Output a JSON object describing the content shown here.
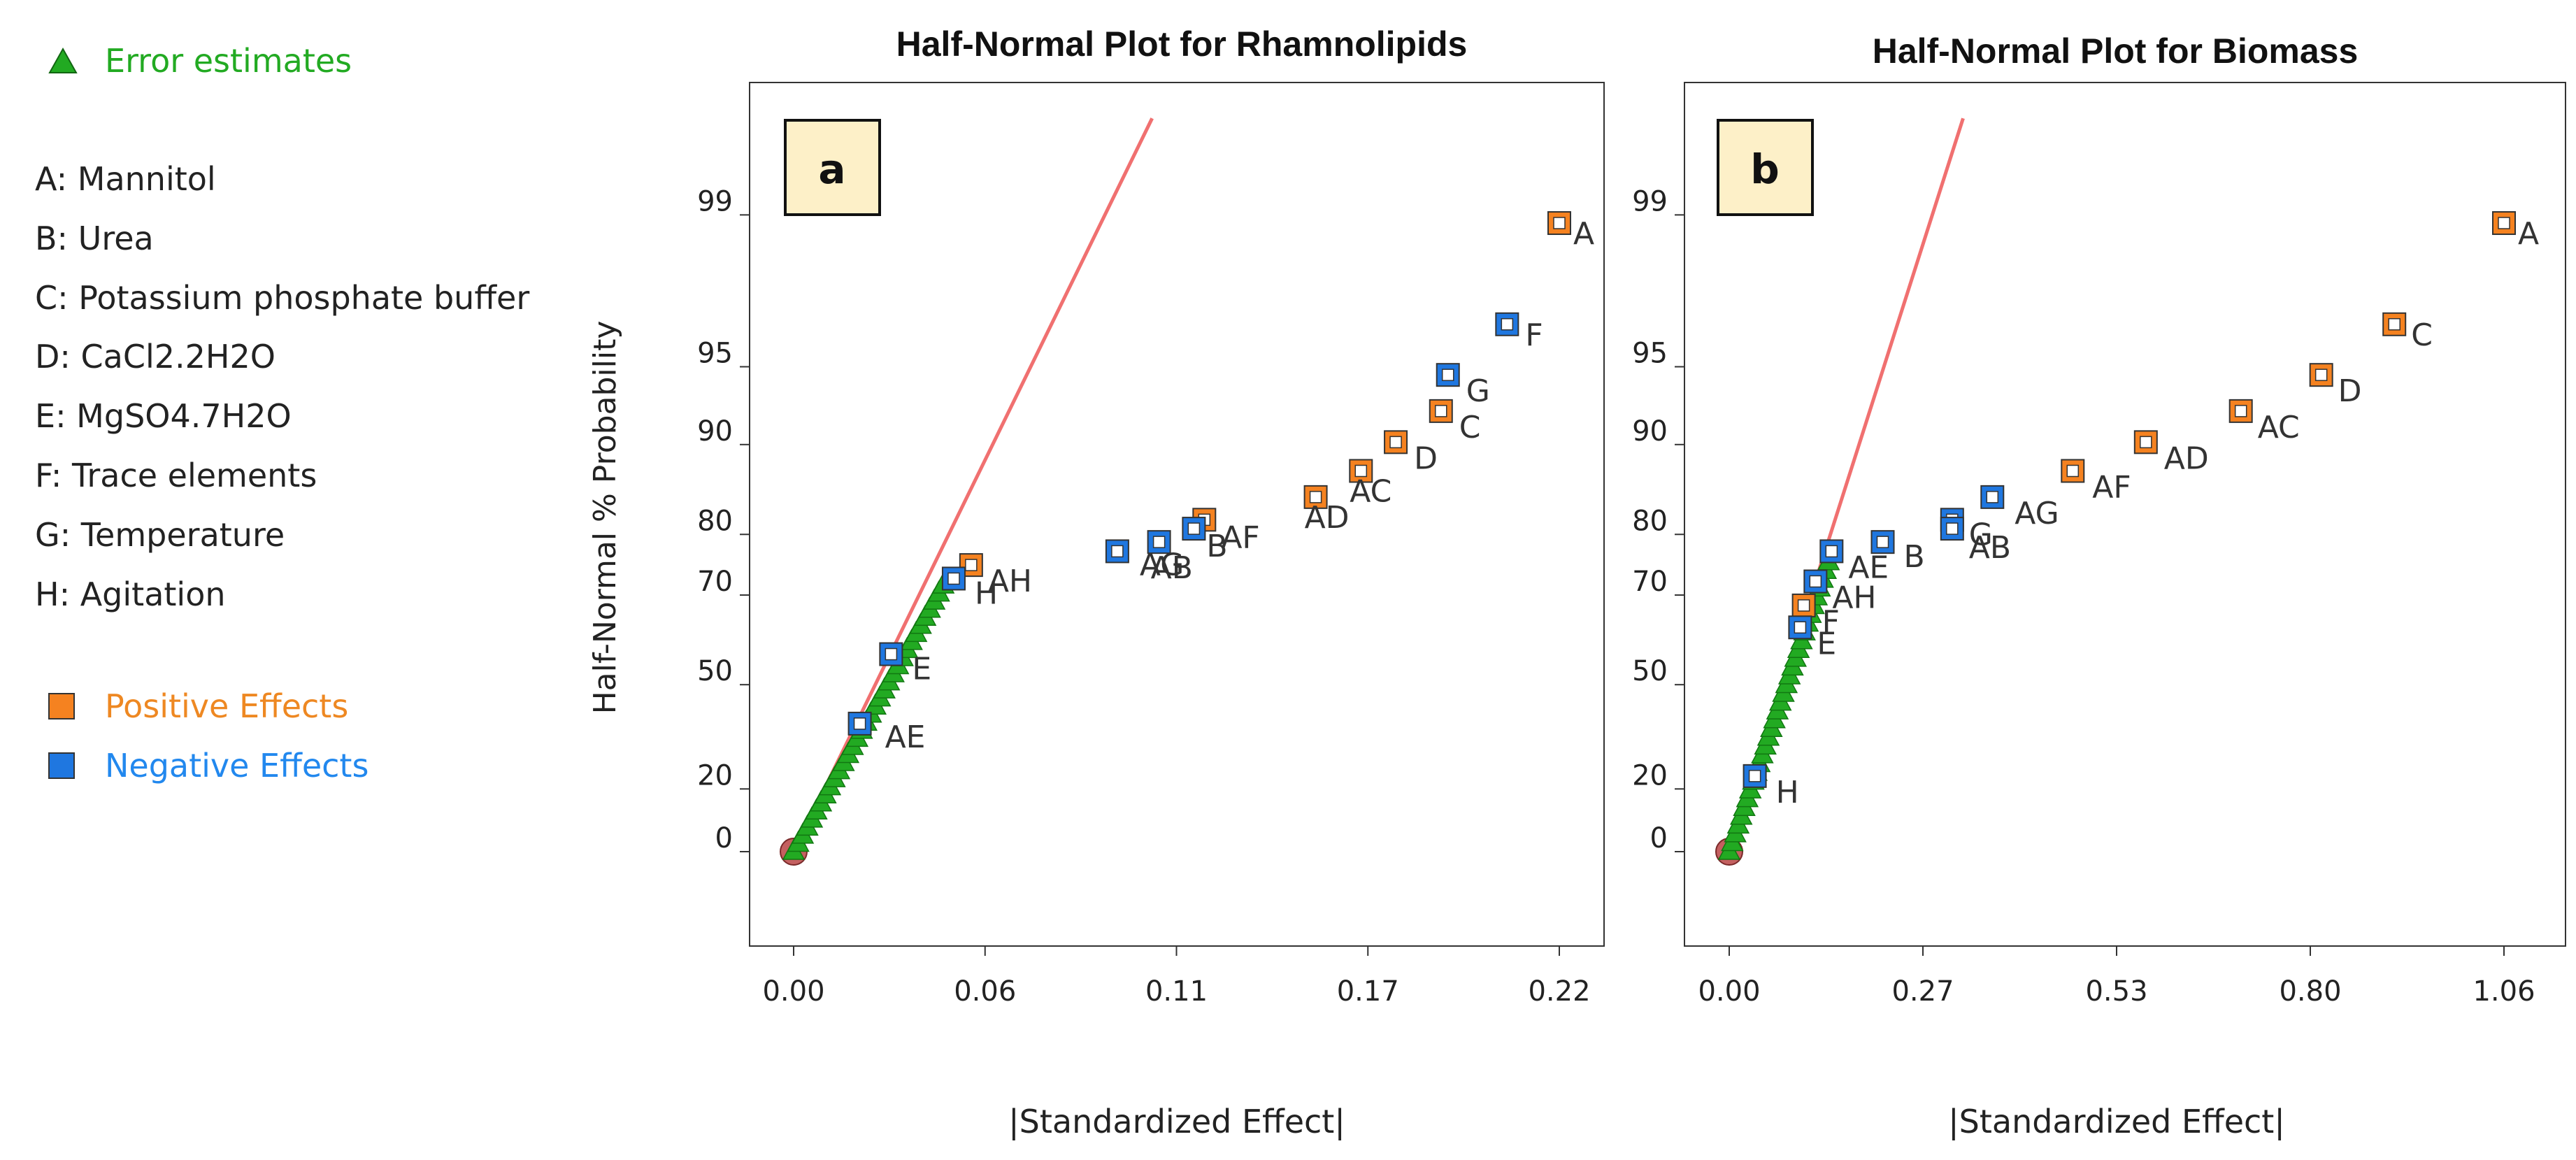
{
  "legend": {
    "error_label": "Error estimates",
    "factors": [
      "A: Mannitol",
      "B: Urea",
      "C: Potassium phosphate buffer",
      "D: CaCl2.2H2O",
      "E: MgSO4.7H2O",
      "F: Trace elements",
      "G: Temperature",
      "H: Agitation"
    ],
    "positive_label": "Positive Effects",
    "negative_label": "Negative Effects"
  },
  "colors": {
    "positive_fill": "#f58220",
    "negative_fill": "#1f77e0",
    "error_fill": "#22aa22",
    "error_text": "#22aa22",
    "positive_text": "#ee8822",
    "negative_text": "#2288ee",
    "fit_line": "#f07070",
    "origin_marker": "#c46060",
    "panel_label_bg": "#fdf0c8"
  },
  "chart_data": [
    {
      "type": "scatter",
      "title": "Half-Normal Plot for Rhamnolipids",
      "panel_label": "a",
      "xlabel": "|Standardized Effect|",
      "ylabel": "Half-Normal % Probability",
      "x_ticks": [
        "0.00",
        "0.06",
        "0.11",
        "0.17",
        "0.22"
      ],
      "x_tick_values": [
        0.0,
        0.055,
        0.11,
        0.165,
        0.22
      ],
      "xlim": [
        -0.013,
        0.232
      ],
      "y_ticks": [
        "0",
        "20",
        "50",
        "70",
        "80",
        "90",
        "95",
        "99"
      ],
      "fit_line": [
        [
          0.0,
          0
        ],
        [
          0.103,
          99.7
        ]
      ],
      "effects": [
        {
          "label": "A",
          "x": 0.22,
          "y": 98.9,
          "sign": "positive"
        },
        {
          "label": "F",
          "x": 0.205,
          "y": 96.7,
          "sign": "negative"
        },
        {
          "label": "G",
          "x": 0.188,
          "y": 94.6,
          "sign": "negative"
        },
        {
          "label": "C",
          "x": 0.186,
          "y": 92.5,
          "sign": "positive"
        },
        {
          "label": "D",
          "x": 0.173,
          "y": 90.2,
          "sign": "positive"
        },
        {
          "label": "AC",
          "x": 0.163,
          "y": 87.6,
          "sign": "positive"
        },
        {
          "label": "AD",
          "x": 0.15,
          "y": 84.8,
          "sign": "positive"
        },
        {
          "label": "AF",
          "x": 0.118,
          "y": 82.0,
          "sign": "positive"
        },
        {
          "label": "B",
          "x": 0.115,
          "y": 80.8,
          "sign": "negative"
        },
        {
          "label": "AB",
          "x": 0.105,
          "y": 78.9,
          "sign": "negative"
        },
        {
          "label": "AG",
          "x": 0.093,
          "y": 77.5,
          "sign": "negative"
        },
        {
          "label": "AH",
          "x": 0.051,
          "y": 75.3,
          "sign": "positive"
        },
        {
          "label": "H",
          "x": 0.046,
          "y": 73.0,
          "sign": "negative"
        },
        {
          "label": "E",
          "x": 0.028,
          "y": 57.5,
          "sign": "negative"
        },
        {
          "label": "AE",
          "x": 0.019,
          "y": 39.5,
          "sign": "negative"
        }
      ],
      "label_offsets": {
        "A": [
          20,
          30
        ],
        "F": [
          26,
          30
        ],
        "G": [
          26,
          38
        ],
        "C": [
          26,
          38
        ],
        "D": [
          26,
          38
        ],
        "AC": [
          -16,
          44
        ],
        "AD": [
          -16,
          44
        ],
        "AF": [
          24,
          40
        ],
        "B": [
          18,
          40
        ],
        "AB": [
          -12,
          52
        ],
        "AG": [
          32,
          34
        ],
        "AH": [
          24,
          38
        ],
        "H": [
          30,
          36
        ],
        "E": [
          30,
          36
        ],
        "AE": [
          36,
          34
        ]
      },
      "errors": {
        "x_max": 0.043,
        "y_max": 71.8,
        "count": 34
      }
    },
    {
      "type": "scatter",
      "title": "Half-Normal Plot for Biomass",
      "panel_label": "b",
      "xlabel": "|Standardized Effect|",
      "ylabel": "",
      "x_ticks": [
        "0.00",
        "0.27",
        "0.53",
        "0.80",
        "1.06"
      ],
      "x_tick_values": [
        0.0,
        0.265,
        0.53,
        0.795,
        1.06
      ],
      "xlim": [
        -0.065,
        1.152
      ],
      "y_ticks": [
        "0",
        "20",
        "50",
        "70",
        "80",
        "90",
        "95",
        "99"
      ],
      "fit_line": [
        [
          0.0,
          0
        ],
        [
          0.32,
          99.7
        ]
      ],
      "effects": [
        {
          "label": "A",
          "x": 1.06,
          "y": 98.9,
          "sign": "positive"
        },
        {
          "label": "C",
          "x": 0.91,
          "y": 96.7,
          "sign": "positive"
        },
        {
          "label": "D",
          "x": 0.81,
          "y": 94.6,
          "sign": "positive"
        },
        {
          "label": "AC",
          "x": 0.7,
          "y": 92.5,
          "sign": "positive"
        },
        {
          "label": "AD",
          "x": 0.57,
          "y": 90.2,
          "sign": "positive"
        },
        {
          "label": "AF",
          "x": 0.47,
          "y": 87.6,
          "sign": "positive"
        },
        {
          "label": "AG",
          "x": 0.36,
          "y": 84.8,
          "sign": "negative"
        },
        {
          "label": "G",
          "x": 0.305,
          "y": 82.0,
          "sign": "negative"
        },
        {
          "label": "AB",
          "x": 0.305,
          "y": 80.8,
          "sign": "negative"
        },
        {
          "label": "B",
          "x": 0.21,
          "y": 78.9,
          "sign": "negative"
        },
        {
          "label": "AE",
          "x": 0.14,
          "y": 77.5,
          "sign": "negative"
        },
        {
          "label": "AH",
          "x": 0.118,
          "y": 72.5,
          "sign": "negative"
        },
        {
          "label": "F",
          "x": 0.102,
          "y": 68.0,
          "sign": "positive"
        },
        {
          "label": "E",
          "x": 0.097,
          "y": 63.5,
          "sign": "negative"
        },
        {
          "label": "H",
          "x": 0.035,
          "y": 24.0,
          "sign": "negative"
        }
      ],
      "label_offsets": {
        "A": [
          20,
          30
        ],
        "C": [
          24,
          30
        ],
        "D": [
          24,
          38
        ],
        "AC": [
          24,
          38
        ],
        "AD": [
          26,
          38
        ],
        "AF": [
          28,
          38
        ],
        "AG": [
          32,
          38
        ],
        "G": [
          24,
          36
        ],
        "AB": [
          24,
          42
        ],
        "B": [
          30,
          36
        ],
        "AE": [
          24,
          38
        ],
        "AH": [
          24,
          38
        ],
        "F": [
          26,
          38
        ],
        "E": [
          24,
          38
        ],
        "H": [
          30,
          38
        ]
      },
      "errors": {
        "x_max": 0.136,
        "y_max": 75.8,
        "count": 34
      }
    }
  ]
}
